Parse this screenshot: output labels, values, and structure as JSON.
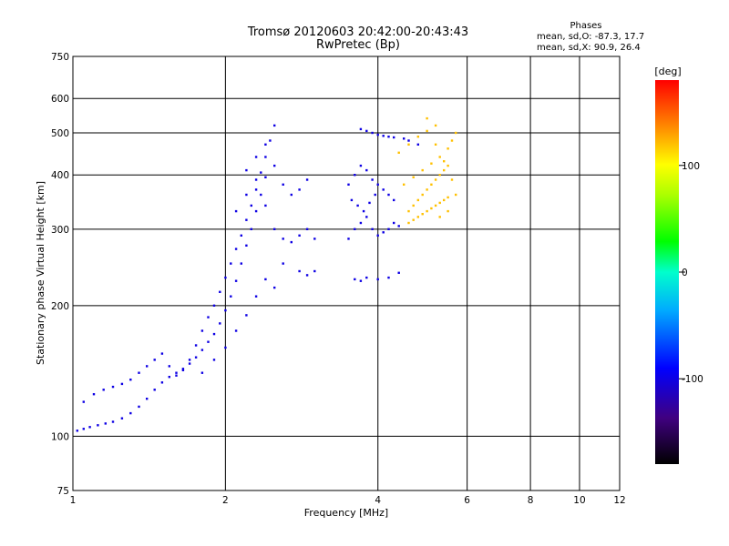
{
  "chart_data": {
    "type": "scatter",
    "title": "Tromsø 20120603 20:42:00-20:43:43",
    "subtitle": "RwPretec (Bp)",
    "xlabel": "Frequency [MHz]",
    "ylabel": "Stationary phase Virtual Height [km]",
    "x_scale": "log",
    "y_scale": "log",
    "xlim": [
      1,
      12
    ],
    "ylim": [
      75,
      750
    ],
    "x_ticks": [
      "1",
      "2",
      "4",
      "6",
      "8",
      "10",
      "12"
    ],
    "y_ticks": [
      "75",
      "100",
      "200",
      "300",
      "400",
      "500",
      "600",
      "750"
    ],
    "grid": true,
    "stats": {
      "heading": "Phases",
      "line_o": "mean, sd,O: -87.3, 17.7",
      "line_x": "mean, sd,X:  90.9, 26.4"
    },
    "colorbar": {
      "label": "[deg]",
      "ticks": [
        "100",
        "0",
        "-100"
      ],
      "tick_values": [
        100,
        0,
        -100
      ],
      "range": [
        -180,
        180
      ]
    },
    "series": [
      {
        "description_o": "dense blue traces",
        "points": [
          [
            1.02,
            103
          ],
          [
            1.05,
            104
          ],
          [
            1.08,
            105
          ],
          [
            1.12,
            106
          ],
          [
            1.16,
            107
          ],
          [
            1.2,
            108
          ],
          [
            1.25,
            110
          ],
          [
            1.3,
            113
          ],
          [
            1.35,
            117
          ],
          [
            1.4,
            122
          ],
          [
            1.45,
            128
          ],
          [
            1.5,
            133
          ],
          [
            1.55,
            137
          ],
          [
            1.6,
            140
          ],
          [
            1.65,
            143
          ],
          [
            1.7,
            147
          ],
          [
            1.75,
            152
          ],
          [
            1.8,
            158
          ],
          [
            1.85,
            165
          ],
          [
            1.9,
            172
          ],
          [
            1.95,
            182
          ],
          [
            2.0,
            195
          ],
          [
            2.05,
            210
          ],
          [
            2.1,
            228
          ],
          [
            2.15,
            250
          ],
          [
            2.2,
            275
          ],
          [
            2.25,
            300
          ],
          [
            2.3,
            330
          ],
          [
            2.35,
            360
          ],
          [
            2.4,
            395
          ],
          [
            1.05,
            120
          ],
          [
            1.1,
            125
          ],
          [
            1.15,
            128
          ],
          [
            1.2,
            130
          ],
          [
            1.25,
            132
          ],
          [
            1.3,
            135
          ],
          [
            1.35,
            140
          ],
          [
            1.4,
            145
          ],
          [
            1.45,
            150
          ],
          [
            1.5,
            155
          ],
          [
            1.55,
            145
          ],
          [
            1.6,
            138
          ],
          [
            1.65,
            142
          ],
          [
            1.7,
            150
          ],
          [
            1.75,
            162
          ],
          [
            1.8,
            175
          ],
          [
            1.85,
            188
          ],
          [
            1.9,
            200
          ],
          [
            1.95,
            215
          ],
          [
            2.0,
            232
          ],
          [
            2.05,
            250
          ],
          [
            2.1,
            270
          ],
          [
            2.15,
            290
          ],
          [
            2.2,
            315
          ],
          [
            2.25,
            340
          ],
          [
            2.3,
            370
          ],
          [
            2.35,
            405
          ],
          [
            2.4,
            440
          ],
          [
            2.45,
            480
          ],
          [
            2.5,
            520
          ],
          [
            2.1,
            330
          ],
          [
            2.2,
            360
          ],
          [
            2.3,
            390
          ],
          [
            2.4,
            340
          ],
          [
            2.5,
            300
          ],
          [
            2.6,
            285
          ],
          [
            2.7,
            280
          ],
          [
            2.8,
            290
          ],
          [
            2.9,
            300
          ],
          [
            3.0,
            285
          ],
          [
            2.2,
            410
          ],
          [
            2.3,
            440
          ],
          [
            2.4,
            470
          ],
          [
            2.5,
            420
          ],
          [
            2.6,
            380
          ],
          [
            2.7,
            360
          ],
          [
            2.8,
            370
          ],
          [
            2.9,
            390
          ],
          [
            2.6,
            250
          ],
          [
            2.8,
            240
          ],
          [
            2.9,
            235
          ],
          [
            3.0,
            240
          ],
          [
            2.4,
            230
          ],
          [
            2.5,
            220
          ],
          [
            2.3,
            210
          ],
          [
            2.2,
            190
          ],
          [
            2.1,
            175
          ],
          [
            2.0,
            160
          ],
          [
            1.9,
            150
          ],
          [
            1.8,
            140
          ],
          [
            3.5,
            285
          ],
          [
            3.6,
            300
          ],
          [
            3.7,
            310
          ],
          [
            3.8,
            320
          ],
          [
            3.9,
            300
          ],
          [
            4.0,
            290
          ],
          [
            4.1,
            295
          ],
          [
            4.2,
            300
          ],
          [
            4.3,
            310
          ],
          [
            4.4,
            305
          ],
          [
            3.5,
            380
          ],
          [
            3.6,
            400
          ],
          [
            3.7,
            420
          ],
          [
            3.8,
            410
          ],
          [
            3.9,
            390
          ],
          [
            4.0,
            380
          ],
          [
            4.1,
            370
          ],
          [
            4.2,
            360
          ],
          [
            4.3,
            350
          ],
          [
            3.55,
            350
          ],
          [
            3.65,
            340
          ],
          [
            3.75,
            330
          ],
          [
            3.85,
            345
          ],
          [
            3.95,
            360
          ],
          [
            3.6,
            230
          ],
          [
            3.7,
            228
          ],
          [
            3.8,
            232
          ],
          [
            4.0,
            230
          ],
          [
            4.2,
            232
          ],
          [
            4.4,
            238
          ],
          [
            3.9,
            500
          ],
          [
            4.0,
            495
          ],
          [
            4.1,
            492
          ],
          [
            4.2,
            490
          ],
          [
            4.3,
            488
          ],
          [
            3.8,
            505
          ],
          [
            3.7,
            510
          ],
          [
            4.5,
            485
          ],
          [
            4.6,
            480
          ],
          [
            4.8,
            470
          ]
        ],
        "phase_deg": -100
      },
      {
        "description_x": "yellow/orange traces near 4.5-5.8 MHz",
        "points": [
          [
            4.6,
            330
          ],
          [
            4.7,
            340
          ],
          [
            4.8,
            350
          ],
          [
            4.9,
            360
          ],
          [
            5.0,
            370
          ],
          [
            5.1,
            380
          ],
          [
            5.2,
            390
          ],
          [
            5.3,
            400
          ],
          [
            5.4,
            410
          ],
          [
            5.5,
            420
          ],
          [
            4.6,
            310
          ],
          [
            4.7,
            315
          ],
          [
            4.8,
            320
          ],
          [
            4.9,
            325
          ],
          [
            5.0,
            330
          ],
          [
            5.1,
            335
          ],
          [
            5.2,
            340
          ],
          [
            5.3,
            345
          ],
          [
            5.4,
            350
          ],
          [
            5.5,
            355
          ],
          [
            4.5,
            380
          ],
          [
            4.7,
            395
          ],
          [
            4.9,
            410
          ],
          [
            5.1,
            425
          ],
          [
            5.3,
            440
          ],
          [
            5.5,
            460
          ],
          [
            5.6,
            480
          ],
          [
            5.7,
            500
          ],
          [
            5.2,
            520
          ],
          [
            5.0,
            540
          ],
          [
            4.4,
            450
          ],
          [
            4.6,
            470
          ],
          [
            4.8,
            490
          ],
          [
            5.0,
            505
          ],
          [
            5.2,
            470
          ],
          [
            5.4,
            430
          ],
          [
            5.6,
            390
          ],
          [
            5.7,
            360
          ],
          [
            5.5,
            330
          ],
          [
            5.3,
            320
          ]
        ],
        "phase_deg": 120
      }
    ]
  }
}
